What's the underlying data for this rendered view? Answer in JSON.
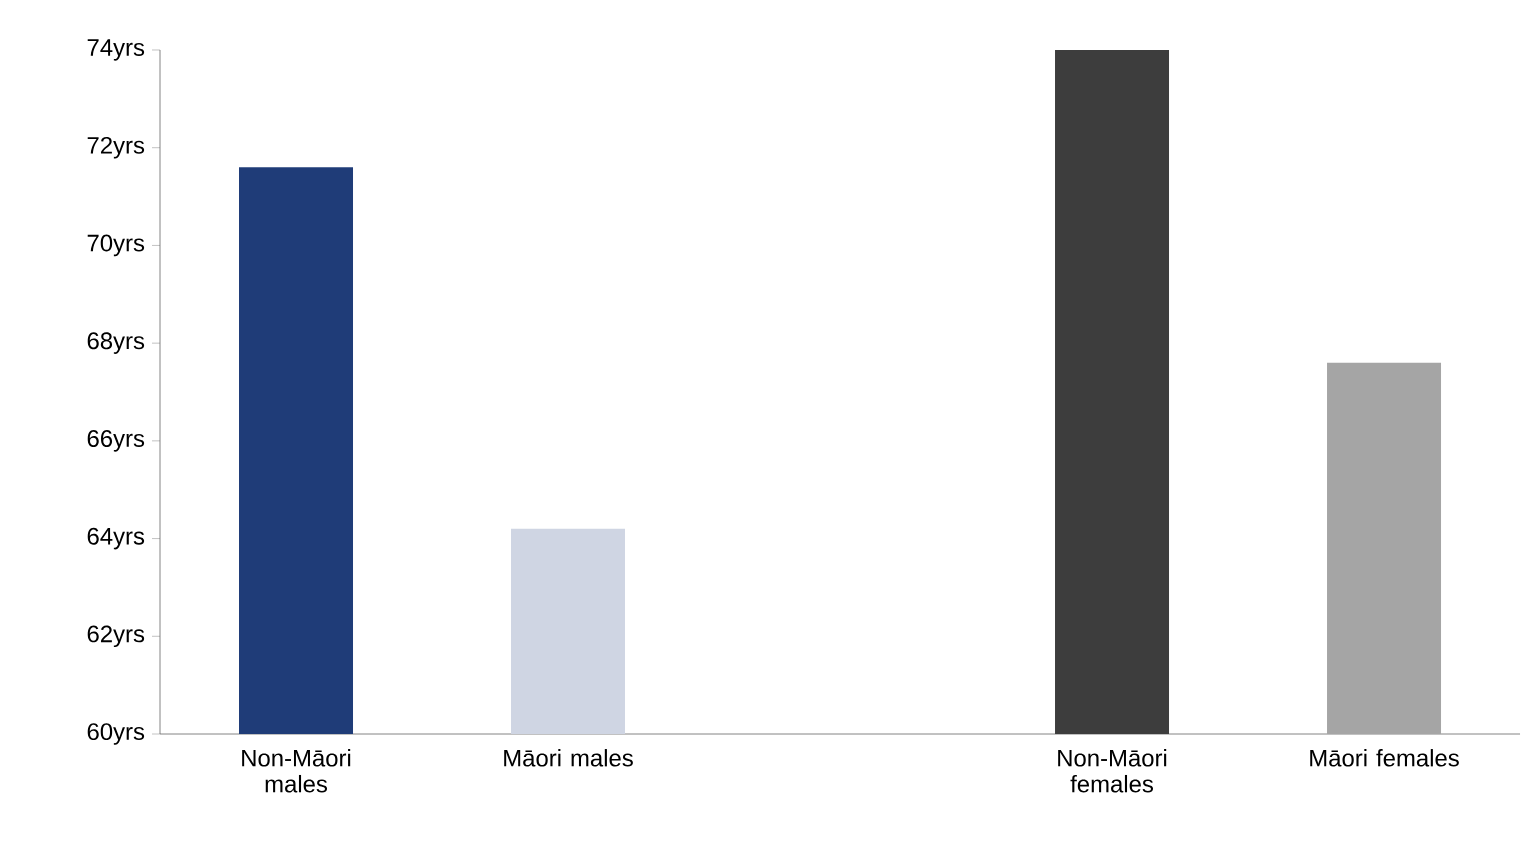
{
  "chart_data": {
    "type": "bar",
    "categories": [
      "Non-Māori males",
      "Māori males",
      null,
      "Non-Māori females",
      "Māori females"
    ],
    "values": [
      71.6,
      64.2,
      null,
      74.0,
      67.6
    ],
    "colors": [
      "#1f3c78",
      "#cfd5e3",
      "#000000",
      "#3d3d3d",
      "#a5a5a5"
    ],
    "ylim": [
      60,
      74
    ],
    "yticks": [
      {
        "value": 60,
        "label": "60yrs"
      },
      {
        "value": 62,
        "label": "62yrs"
      },
      {
        "value": 64,
        "label": "64yrs"
      },
      {
        "value": 66,
        "label": "66yrs"
      },
      {
        "value": 68,
        "label": "68yrs"
      },
      {
        "value": 70,
        "label": "70yrs"
      },
      {
        "value": 72,
        "label": "72yrs"
      },
      {
        "value": 74,
        "label": "74yrs"
      }
    ]
  }
}
